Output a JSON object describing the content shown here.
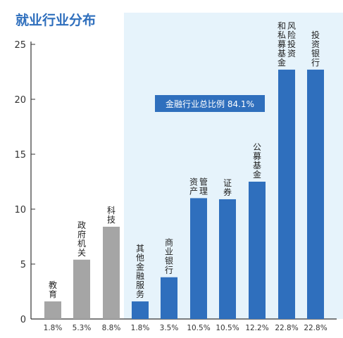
{
  "chart_data": {
    "type": "bar",
    "title": "就业行业分布",
    "categories": [
      "教育",
      "政府机关",
      "科技",
      "其他金融服务",
      "商业银行",
      "资产管理",
      "证券",
      "公募基金",
      "和私募基金风险投资",
      "投资银行"
    ],
    "category_labels": [
      {
        "columns": [
          "教育"
        ]
      },
      {
        "columns": [
          "政府机关"
        ]
      },
      {
        "columns": [
          "科技"
        ]
      },
      {
        "columns": [
          "其他金融服务"
        ]
      },
      {
        "columns": [
          "商业银行"
        ]
      },
      {
        "columns": [
          "资产",
          "管理"
        ]
      },
      {
        "columns": [
          "证券"
        ]
      },
      {
        "columns": [
          "公募基金"
        ]
      },
      {
        "columns": [
          "和私募基金",
          "风险投资"
        ]
      },
      {
        "columns": [
          "投资银行"
        ]
      }
    ],
    "values": [
      1.8,
      5.3,
      8.8,
      1.8,
      3.5,
      10.5,
      10.5,
      12.2,
      22.8,
      22.8
    ],
    "bar_heights": [
      1.6,
      5.4,
      8.4,
      1.6,
      3.8,
      11.0,
      10.9,
      12.5,
      22.7,
      22.7
    ],
    "value_labels": [
      "1.8%",
      "5.3%",
      "8.8%",
      "1.8%",
      "3.5%",
      "10.5%",
      "10.5%",
      "12.2%",
      "22.8%",
      "22.8%"
    ],
    "groups": [
      "non-finance",
      "non-finance",
      "non-finance",
      "finance",
      "finance",
      "finance",
      "finance",
      "finance",
      "finance",
      "finance"
    ],
    "y_ticks": [
      0,
      5,
      10,
      15,
      20,
      25
    ],
    "ylim": [
      0,
      25
    ],
    "annotation": "金融行业总比例 84.1%",
    "grid": false,
    "colors": {
      "non_finance": "#a5a5a5",
      "finance": "#2f6fbd",
      "highlight_bg": "#e6f3fb",
      "title": "#2f6fbd",
      "annotation_bg": "#2f6fbd",
      "annotation_text": "#ffffff",
      "axis": "#333333"
    }
  }
}
